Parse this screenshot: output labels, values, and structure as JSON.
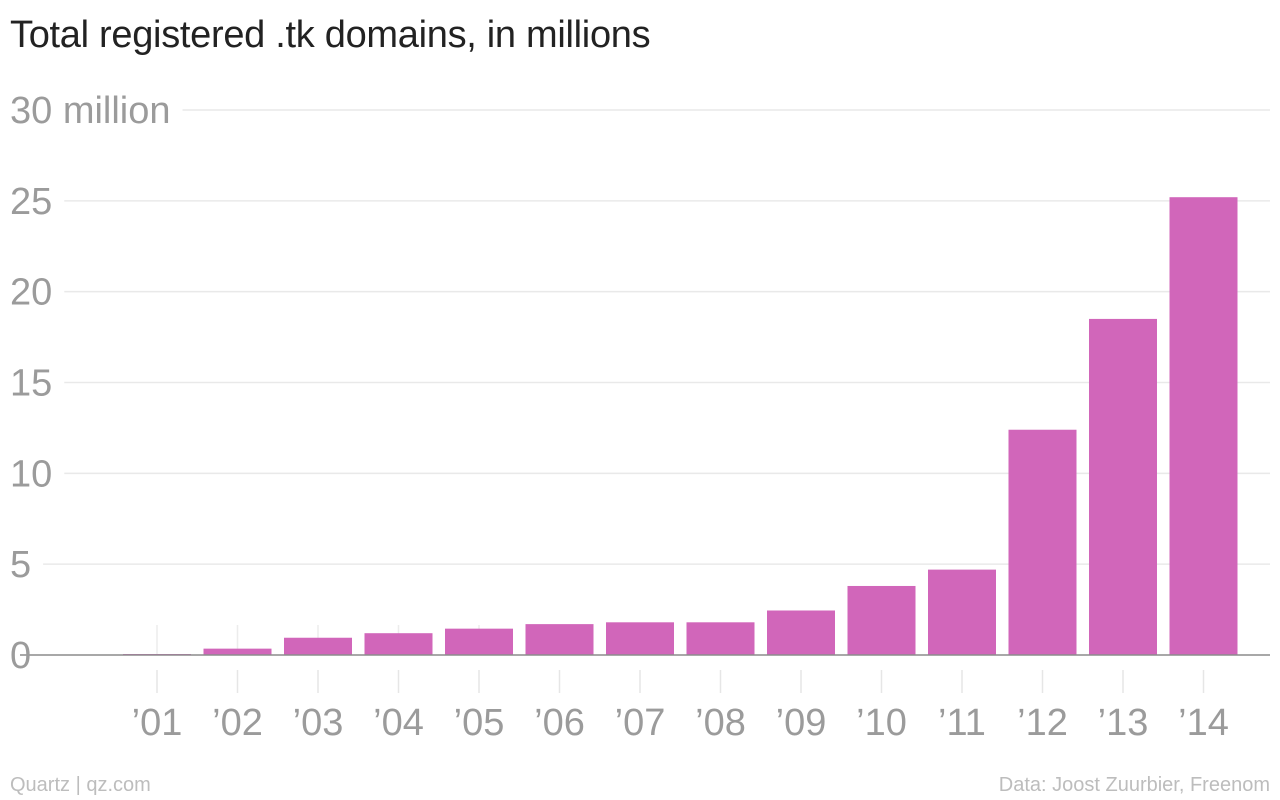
{
  "chart_data": {
    "type": "bar",
    "title": "Total registered .tk domains, in millions",
    "categories": [
      "’01",
      "’02",
      "’03",
      "’04",
      "’05",
      "’06",
      "’07",
      "’08",
      "’09",
      "’10",
      "’11",
      "’12",
      "’13",
      "’14"
    ],
    "values": [
      0.05,
      0.35,
      0.95,
      1.2,
      1.45,
      1.7,
      1.8,
      1.8,
      2.45,
      3.8,
      4.7,
      12.4,
      18.5,
      25.2
    ],
    "ylim": [
      0,
      30
    ],
    "yticks": [
      0,
      5,
      10,
      15,
      20,
      25,
      30
    ],
    "ytick_labels": [
      "0",
      "5",
      "10",
      "15",
      "20",
      "25",
      "30 million"
    ],
    "xlabel": "",
    "ylabel": "",
    "grid": true,
    "legend": "none",
    "bar_color": "#d166ba"
  },
  "footer": {
    "credit": "Quartz | qz.com",
    "source": "Data: Joost Zuurbier, Freenom"
  }
}
